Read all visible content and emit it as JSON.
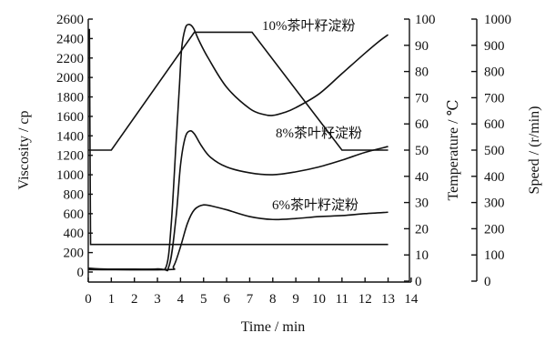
{
  "chart_data": {
    "type": "line",
    "xlabel": "Time / min",
    "x_axis": {
      "range": [
        0,
        14
      ],
      "ticks": [
        0,
        1,
        2,
        3,
        4,
        5,
        6,
        7,
        8,
        9,
        10,
        11,
        12,
        13,
        14
      ]
    },
    "y_axes": {
      "viscosity": {
        "label": "Viscosity / cp",
        "range": [
          0,
          2600
        ],
        "ticks": [
          0,
          200,
          400,
          600,
          800,
          1000,
          1200,
          1400,
          1600,
          1800,
          2000,
          2200,
          2400,
          2600
        ]
      },
      "temperature": {
        "label": "Temperature / ℃",
        "range": [
          0,
          100
        ],
        "ticks": [
          0,
          10,
          20,
          30,
          40,
          50,
          60,
          70,
          80,
          90,
          100
        ]
      },
      "speed": {
        "label": "Speed / (r/min)",
        "range": [
          0,
          1000
        ],
        "ticks": [
          0,
          100,
          200,
          300,
          400,
          500,
          600,
          700,
          800,
          900,
          1000
        ]
      }
    },
    "series": [
      {
        "name": "10%茶叶籽淀粉",
        "axis": "viscosity",
        "x": [
          0,
          0.3,
          1,
          2,
          3,
          3.4,
          3.6,
          3.8,
          3.95,
          4.05,
          4.2,
          4.35,
          4.55,
          4.8,
          5.2,
          6,
          7,
          7.6,
          8,
          8.5,
          9,
          10,
          11,
          12,
          12.6,
          13
        ],
        "y": [
          40,
          35,
          30,
          30,
          32,
          70,
          500,
          1300,
          1900,
          2300,
          2500,
          2545,
          2510,
          2380,
          2200,
          1900,
          1680,
          1620,
          1610,
          1640,
          1690,
          1830,
          2040,
          2250,
          2370,
          2440
        ]
      },
      {
        "name": "8%茶叶籽淀粉",
        "axis": "viscosity",
        "x": [
          0,
          3,
          3.5,
          3.8,
          4.0,
          4.2,
          4.4,
          4.6,
          4.9,
          5.3,
          6,
          7,
          8,
          9,
          10,
          11,
          12,
          13
        ],
        "y": [
          30,
          30,
          60,
          550,
          1100,
          1380,
          1450,
          1420,
          1300,
          1180,
          1080,
          1020,
          1000,
          1030,
          1080,
          1150,
          1230,
          1290
        ]
      },
      {
        "name": "6%茶叶籽淀粉",
        "axis": "viscosity",
        "x": [
          0,
          3.4,
          3.7,
          4.0,
          4.3,
          4.6,
          5.0,
          5.5,
          6,
          7,
          8,
          9,
          10,
          11,
          12,
          13
        ],
        "y": [
          25,
          25,
          60,
          260,
          500,
          640,
          690,
          670,
          640,
          570,
          540,
          550,
          570,
          580,
          600,
          615
        ]
      },
      {
        "name": "Temperature",
        "axis": "temperature",
        "x": [
          0,
          1,
          4.6,
          7.1,
          11,
          13
        ],
        "y": [
          50,
          50,
          95,
          95,
          50,
          50
        ]
      },
      {
        "name": "Speed",
        "axis": "speed",
        "x": [
          0,
          0.05,
          0.1,
          0.16,
          0.3,
          13
        ],
        "y": [
          960,
          960,
          140,
          140,
          140,
          140
        ]
      }
    ],
    "labels": [
      {
        "text": "10%茶叶籽淀粉",
        "series": "10%茶叶籽淀粉"
      },
      {
        "text": "8%茶叶籽淀粉",
        "series": "8%茶叶籽淀粉"
      },
      {
        "text": "6%茶叶籽淀粉",
        "series": "6%茶叶籽淀粉"
      }
    ]
  },
  "colors": {
    "line": "#111111",
    "background": "#ffffff"
  }
}
